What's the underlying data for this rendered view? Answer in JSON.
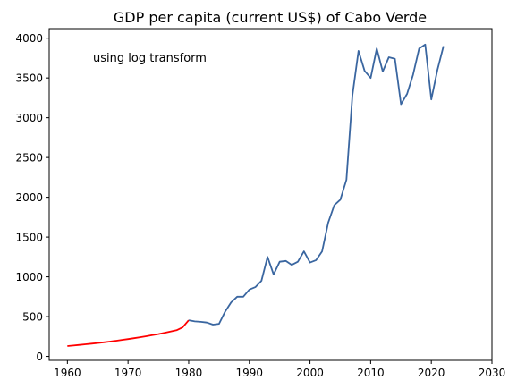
{
  "chart_data": {
    "type": "line",
    "title": "GDP per capita (current US$) of Cabo Verde",
    "annotation": "using log transform",
    "xlabel": "",
    "ylabel": "",
    "xlim": [
      1957,
      2030
    ],
    "ylim": [
      -50,
      4120
    ],
    "x_ticks": [
      1960,
      1970,
      1980,
      1990,
      2000,
      2010,
      2020,
      2030
    ],
    "x_tick_labels": [
      "1960",
      "1970",
      "1980",
      "1990",
      "2000",
      "2010",
      "2020",
      "2030"
    ],
    "y_ticks": [
      0,
      500,
      1000,
      1500,
      2000,
      2500,
      3000,
      3500,
      4000
    ],
    "y_tick_labels": [
      "0",
      "500",
      "1000",
      "1500",
      "2000",
      "2500",
      "3000",
      "3500",
      "4000"
    ],
    "grid": false,
    "series": [
      {
        "color": "#ff0000",
        "x": [
          1960,
          1961,
          1962,
          1963,
          1964,
          1965,
          1966,
          1967,
          1968,
          1969,
          1970,
          1971,
          1972,
          1973,
          1974,
          1975,
          1976,
          1977,
          1978,
          1979,
          1980
        ],
        "y": [
          130,
          137,
          144,
          152,
          160,
          168,
          177,
          186,
          196,
          207,
          218,
          229,
          241,
          254,
          267,
          281,
          296,
          312,
          329,
          365,
          455
        ]
      },
      {
        "color": "#3a66a0",
        "x": [
          1980,
          1981,
          1982,
          1983,
          1984,
          1985,
          1986,
          1987,
          1988,
          1989,
          1990,
          1991,
          1992,
          1993,
          1994,
          1995,
          1996,
          1997,
          1998,
          1999,
          2000,
          2001,
          2002,
          2003,
          2004,
          2005,
          2006,
          2007,
          2008,
          2009,
          2010,
          2011,
          2012,
          2013,
          2014,
          2015,
          2016,
          2017,
          2018,
          2019,
          2020,
          2021,
          2022
        ],
        "y": [
          455,
          440,
          435,
          425,
          400,
          410,
          560,
          680,
          750,
          750,
          840,
          870,
          950,
          1250,
          1030,
          1190,
          1200,
          1150,
          1190,
          1320,
          1180,
          1210,
          1320,
          1680,
          1900,
          1970,
          2220,
          3280,
          3840,
          3590,
          3500,
          3870,
          3580,
          3760,
          3740,
          3170,
          3300,
          3540,
          3870,
          3920,
          3230,
          3600,
          3900
        ]
      }
    ]
  }
}
